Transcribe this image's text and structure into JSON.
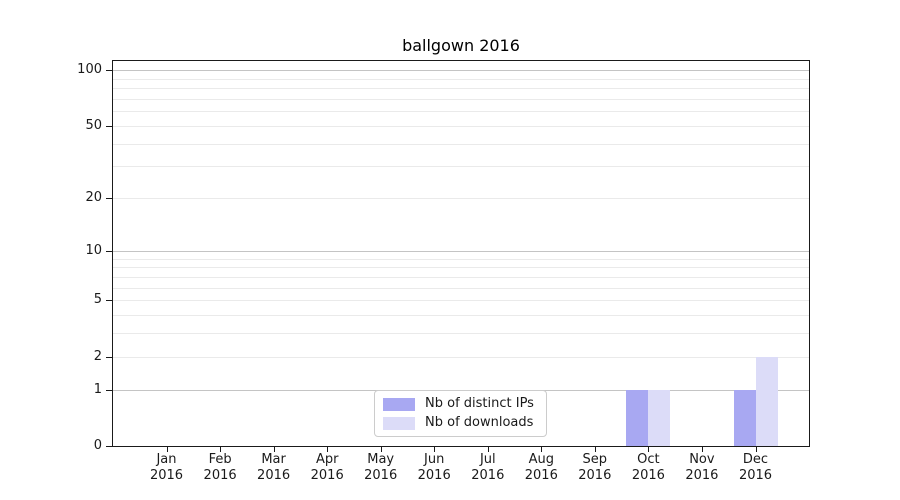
{
  "chart_data": {
    "type": "bar",
    "title": "ballgown 2016",
    "xlabel": "",
    "ylabel": "",
    "categories": [
      "Jan 2016",
      "Feb 2016",
      "Mar 2016",
      "Apr 2016",
      "May 2016",
      "Jun 2016",
      "Jul 2016",
      "Aug 2016",
      "Sep 2016",
      "Oct 2016",
      "Nov 2016",
      "Dec 2016"
    ],
    "series": [
      {
        "name": "Nb of distinct IPs",
        "color": "#a8a8f2",
        "values": [
          0,
          0,
          0,
          0,
          0,
          0,
          0,
          0,
          0,
          1,
          0,
          1
        ]
      },
      {
        "name": "Nb of downloads",
        "color": "#dcdcf8",
        "values": [
          0,
          0,
          0,
          0,
          0,
          0,
          0,
          0,
          0,
          1,
          0,
          2
        ]
      }
    ],
    "yticks": [
      0,
      1,
      2,
      5,
      10,
      20,
      50,
      100
    ],
    "ylim": [
      0,
      112
    ],
    "scale": "log1p",
    "grid": {
      "on": true,
      "major": [
        1,
        10,
        100
      ],
      "minor": [
        2,
        3,
        4,
        5,
        6,
        7,
        8,
        9,
        20,
        30,
        40,
        50,
        60,
        70,
        80,
        90
      ]
    },
    "legend": {
      "position": "bottom-center-inside"
    },
    "colors": {
      "spine": "#1a1a1a",
      "grid_major": "#c4c4c4",
      "grid_minor": "#eaeaea",
      "text": "#1a1a1a",
      "background": "#ffffff"
    }
  }
}
